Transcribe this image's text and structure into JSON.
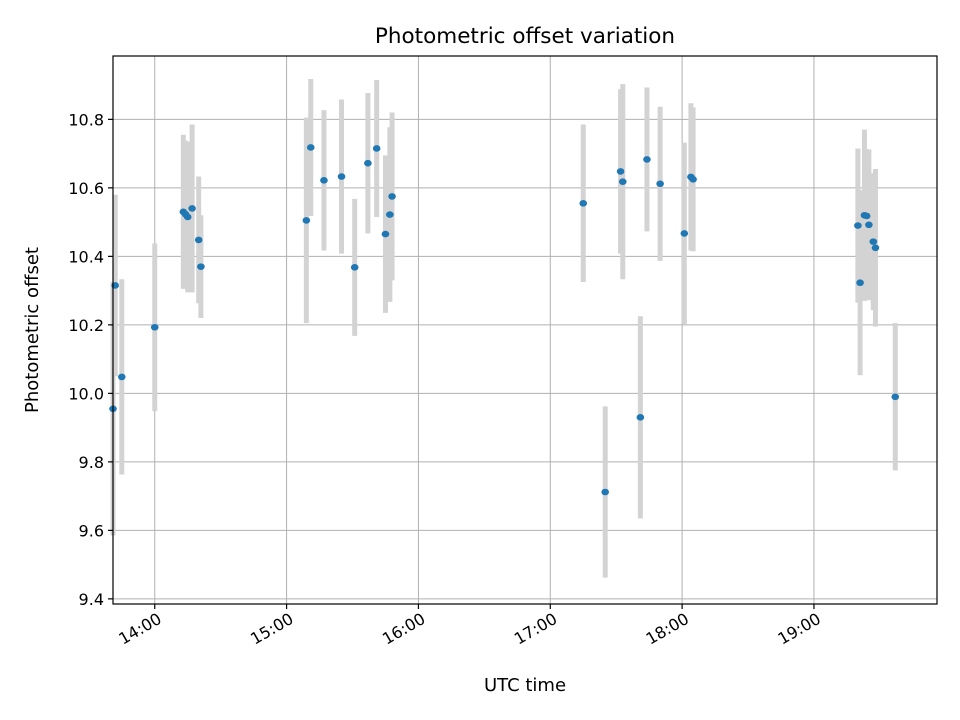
{
  "chart_data": {
    "type": "scatter",
    "title": "Photometric offset variation",
    "xlabel": "UTC time",
    "ylabel": "Photometric offset",
    "grid": true,
    "x_tick_labels": [
      "14:00",
      "15:00",
      "16:00",
      "17:00",
      "18:00",
      "19:00"
    ],
    "y_tick_labels": [
      "9.4",
      "9.6",
      "9.8",
      "10.0",
      "10.2",
      "10.4",
      "10.6",
      "10.8"
    ],
    "xlim": [
      "13:41",
      "19:56"
    ],
    "ylim": [
      9.385,
      10.985
    ],
    "colors": {
      "point": "#1f77b4",
      "errorbar": "#d3d3d3",
      "grid": "#b0b0b0"
    },
    "points": [
      {
        "time": "13:41",
        "value": 9.955,
        "err": 0.37
      },
      {
        "time": "13:42",
        "value": 10.315,
        "err": 0.265
      },
      {
        "time": "13:45",
        "value": 10.048,
        "err": 0.285
      },
      {
        "time": "14:00",
        "value": 10.193,
        "err": 0.245
      },
      {
        "time": "14:13",
        "value": 10.53,
        "err": 0.225
      },
      {
        "time": "14:14",
        "value": 10.523,
        "err": 0.215
      },
      {
        "time": "14:15",
        "value": 10.515,
        "err": 0.22
      },
      {
        "time": "14:17",
        "value": 10.54,
        "err": 0.245
      },
      {
        "time": "14:20",
        "value": 10.448,
        "err": 0.185
      },
      {
        "time": "14:21",
        "value": 10.37,
        "err": 0.15
      },
      {
        "time": "15:09",
        "value": 10.505,
        "err": 0.3
      },
      {
        "time": "15:11",
        "value": 10.718,
        "err": 0.2
      },
      {
        "time": "15:17",
        "value": 10.622,
        "err": 0.205
      },
      {
        "time": "15:25",
        "value": 10.633,
        "err": 0.225
      },
      {
        "time": "15:31",
        "value": 10.368,
        "err": 0.2
      },
      {
        "time": "15:37",
        "value": 10.672,
        "err": 0.205
      },
      {
        "time": "15:41",
        "value": 10.715,
        "err": 0.2
      },
      {
        "time": "15:45",
        "value": 10.465,
        "err": 0.23
      },
      {
        "time": "15:47",
        "value": 10.522,
        "err": 0.255
      },
      {
        "time": "15:48",
        "value": 10.575,
        "err": 0.245
      },
      {
        "time": "17:15",
        "value": 10.555,
        "err": 0.23
      },
      {
        "time": "17:25",
        "value": 9.712,
        "err": 0.25
      },
      {
        "time": "17:32",
        "value": 10.648,
        "err": 0.24
      },
      {
        "time": "17:33",
        "value": 10.618,
        "err": 0.285
      },
      {
        "time": "17:41",
        "value": 9.93,
        "err": 0.295
      },
      {
        "time": "17:44",
        "value": 10.683,
        "err": 0.21
      },
      {
        "time": "17:50",
        "value": 10.612,
        "err": 0.225
      },
      {
        "time": "18:01",
        "value": 10.467,
        "err": 0.265
      },
      {
        "time": "18:04",
        "value": 10.632,
        "err": 0.215
      },
      {
        "time": "18:05",
        "value": 10.625,
        "err": 0.21
      },
      {
        "time": "19:20",
        "value": 10.49,
        "err": 0.225
      },
      {
        "time": "19:21",
        "value": 10.323,
        "err": 0.27
      },
      {
        "time": "19:23",
        "value": 10.52,
        "err": 0.25
      },
      {
        "time": "19:24",
        "value": 10.518,
        "err": 0.195
      },
      {
        "time": "19:25",
        "value": 10.492,
        "err": 0.22
      },
      {
        "time": "19:27",
        "value": 10.443,
        "err": 0.2
      },
      {
        "time": "19:28",
        "value": 10.425,
        "err": 0.23
      },
      {
        "time": "19:37",
        "value": 9.99,
        "err": 0.215
      }
    ]
  }
}
